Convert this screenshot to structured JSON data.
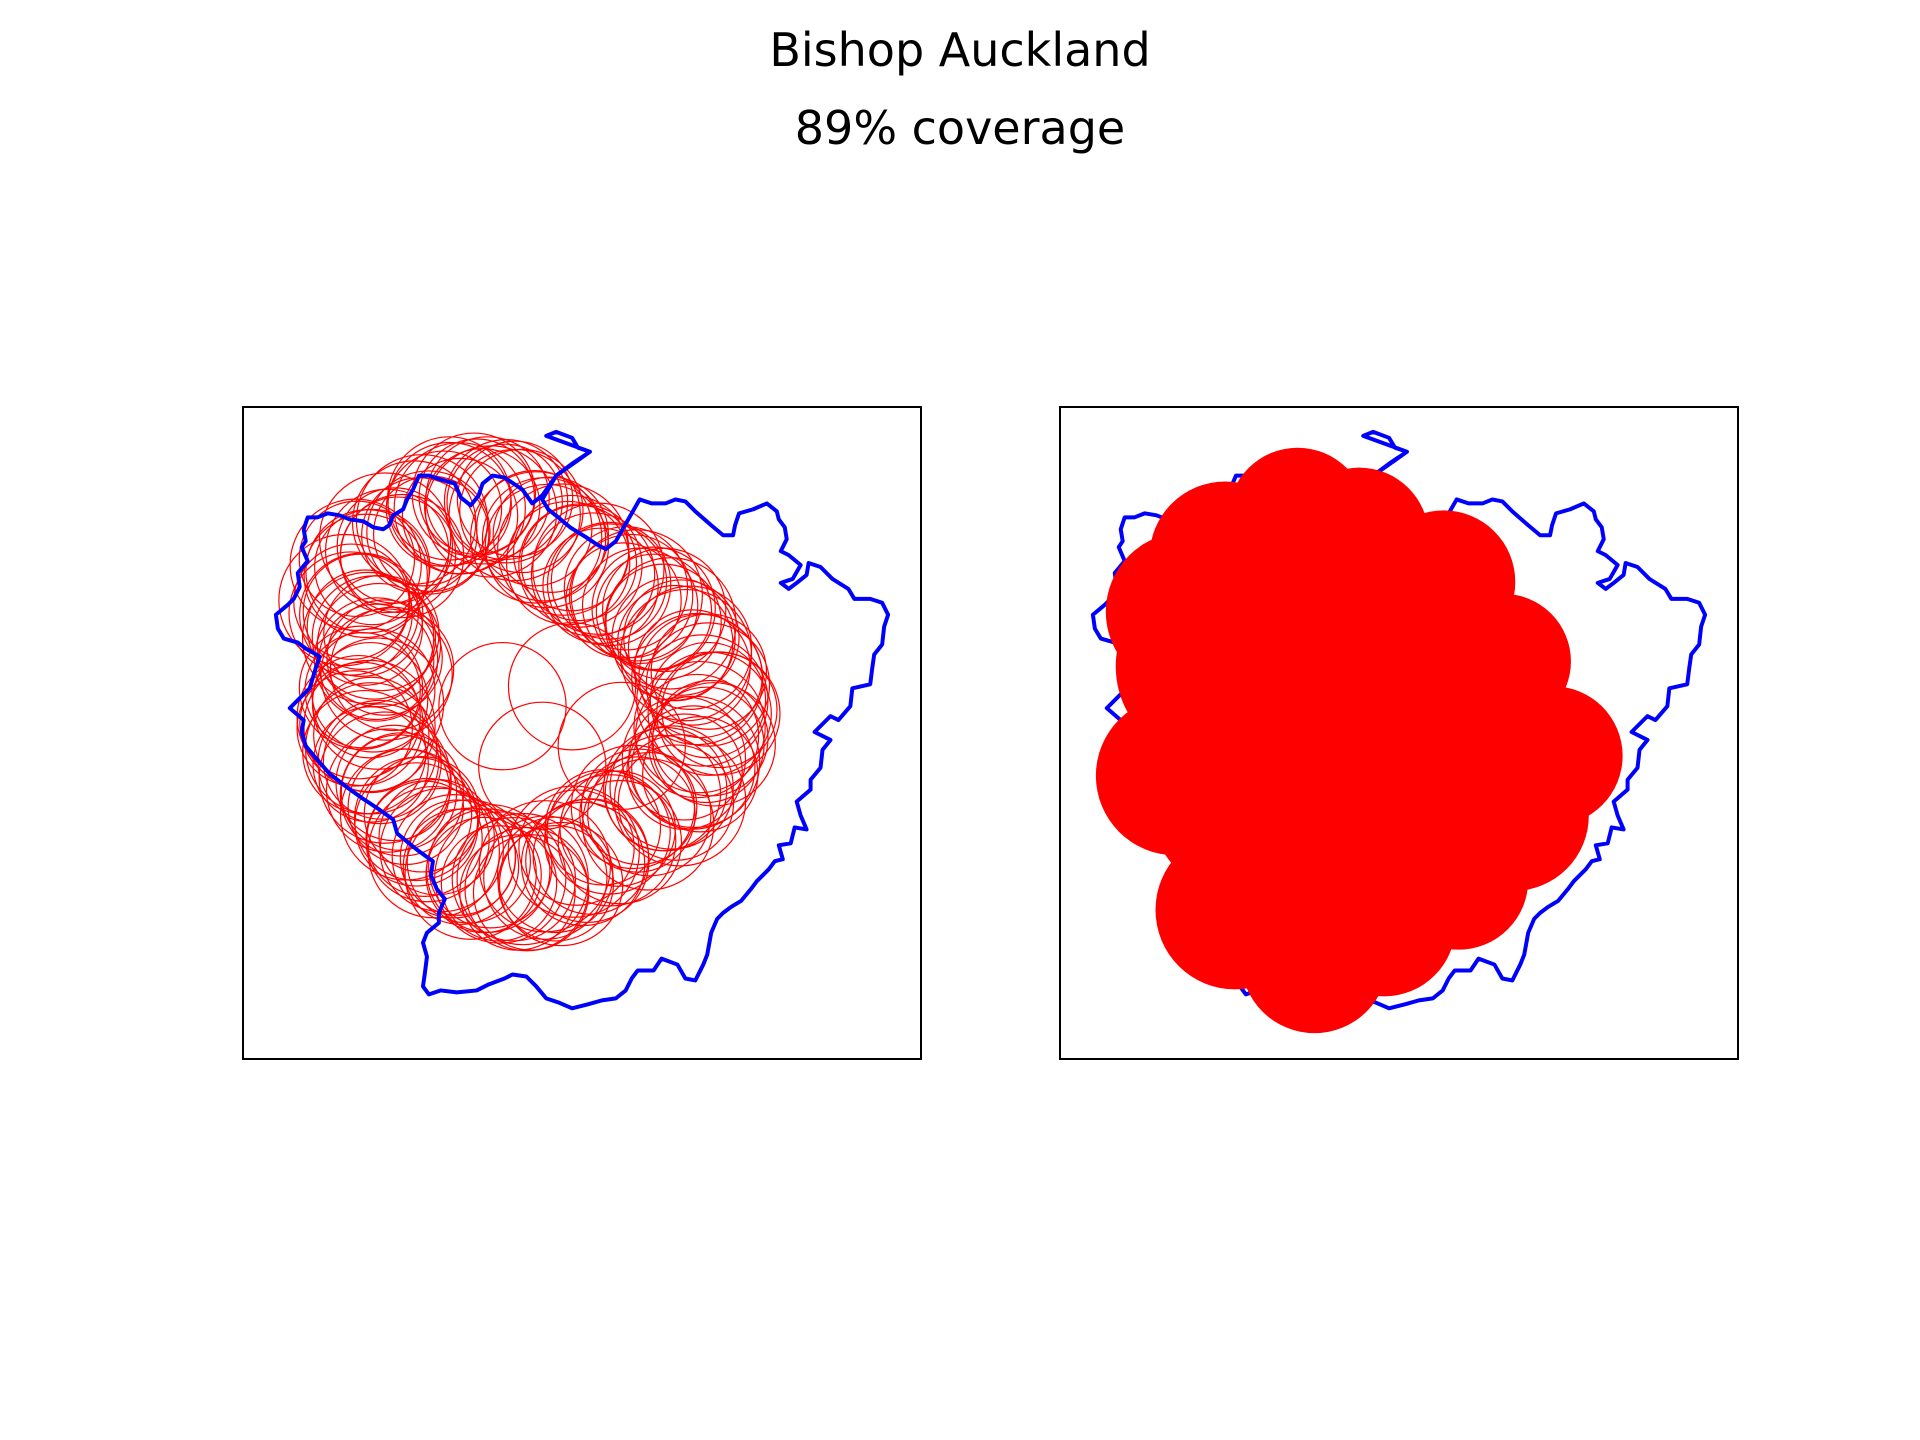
{
  "figure": {
    "title": "Bishop Auckland",
    "subtitle": "89% coverage"
  },
  "colors": {
    "boundary": "#0000ff",
    "circles": "#ff0000",
    "frame": "#000000",
    "background": "#ffffff"
  },
  "panels": [
    {
      "name": "circle-outlines",
      "circle_style": "outline"
    },
    {
      "name": "circle-union",
      "circle_style": "filled"
    }
  ]
}
